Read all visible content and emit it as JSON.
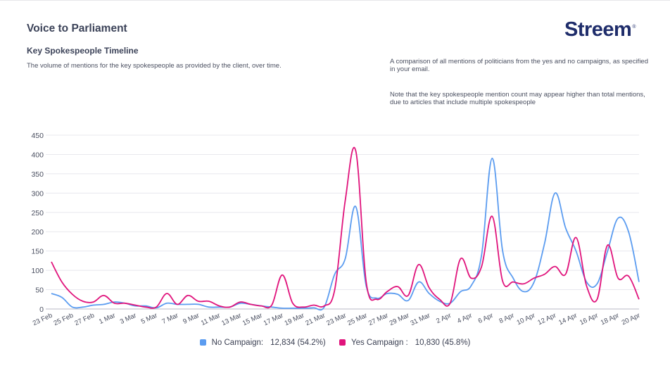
{
  "header": {
    "title": "Voice to Parliament",
    "subtitle": "Key Spokespeople Timeline",
    "description": "The volume of mentions for the key spokespeople as provided by the client, over time.",
    "note1": "A comparison of all mentions of politicians from the yes and no campaigns, as specified in your email.",
    "note2": "Note that the key spokespeople mention count may appear higher than total mentions, due to articles that include multiple spokespeople",
    "brand": "Streem",
    "brand_mark": "®"
  },
  "legend": {
    "items": [
      {
        "label": "No Campaign:",
        "value": "12,834 (54.2%)"
      },
      {
        "label": "Yes Campaign :",
        "value": "10,830 (45.8%)"
      }
    ]
  },
  "colors": {
    "no": "#5b9cf0",
    "yes": "#e0147c",
    "grid": "#e8e8ee"
  },
  "chart_data": {
    "type": "line",
    "title": "Key Spokespeople Timeline",
    "xlabel": "",
    "ylabel": "",
    "ylim": [
      0,
      450
    ],
    "yticks": [
      0,
      50,
      100,
      150,
      200,
      250,
      300,
      350,
      400,
      450
    ],
    "x": [
      "23 Feb",
      "24 Feb",
      "25 Feb",
      "26 Feb",
      "27 Feb",
      "28 Feb",
      "1 Mar",
      "2 Mar",
      "3 Mar",
      "4 Mar",
      "5 Mar",
      "6 Mar",
      "7 Mar",
      "8 Mar",
      "9 Mar",
      "10 Mar",
      "11 Mar",
      "12 Mar",
      "13 Mar",
      "14 Mar",
      "15 Mar",
      "16 Mar",
      "17 Mar",
      "18 Mar",
      "19 Mar",
      "20 Mar",
      "21 Mar",
      "22 Mar",
      "23 Mar",
      "24 Mar",
      "25 Mar",
      "26 Mar",
      "27 Mar",
      "28 Mar",
      "29 Mar",
      "30 Mar",
      "31 Mar",
      "1 Apr",
      "2 Apr",
      "3 Apr",
      "4 Apr",
      "5 Apr",
      "6 Apr",
      "7 Apr",
      "8 Apr",
      "9 Apr",
      "10 Apr",
      "11 Apr",
      "12 Apr",
      "13 Apr",
      "14 Apr",
      "15 Apr",
      "16 Apr",
      "17 Apr",
      "18 Apr",
      "19 Apr",
      "20 Apr"
    ],
    "xtick_labels": [
      "23 Feb",
      "25 Feb",
      "27 Feb",
      "1 Mar",
      "3 Mar",
      "5 Mar",
      "7 Mar",
      "9 Mar",
      "11 Mar",
      "13 Mar",
      "15 Mar",
      "17 Mar",
      "19 Mar",
      "21 Mar",
      "23 Mar",
      "25 Mar",
      "27 Mar",
      "29 Mar",
      "31 Mar",
      "2 Apr",
      "4 Apr",
      "6 Apr",
      "8 Apr",
      "10 Apr",
      "12 Apr",
      "14 Apr",
      "16 Apr",
      "18 Apr",
      "20 Apr"
    ],
    "series": [
      {
        "name": "No Campaign",
        "values": [
          40,
          30,
          5,
          5,
          10,
          12,
          18,
          15,
          8,
          8,
          3,
          15,
          12,
          12,
          12,
          5,
          5,
          5,
          15,
          12,
          8,
          5,
          2,
          2,
          2,
          3,
          5,
          90,
          130,
          265,
          60,
          28,
          40,
          38,
          22,
          70,
          40,
          20,
          15,
          45,
          60,
          140,
          390,
          150,
          80,
          45,
          70,
          170,
          300,
          210,
          150,
          70,
          65,
          150,
          235,
          200,
          70
        ]
      },
      {
        "name": "Yes Campaign",
        "values": [
          122,
          70,
          38,
          20,
          18,
          35,
          15,
          15,
          10,
          5,
          5,
          40,
          12,
          35,
          20,
          20,
          8,
          5,
          18,
          12,
          8,
          10,
          88,
          15,
          5,
          10,
          8,
          50,
          280,
          410,
          70,
          25,
          45,
          58,
          35,
          115,
          55,
          25,
          15,
          130,
          80,
          110,
          240,
          72,
          70,
          65,
          80,
          90,
          110,
          90,
          185,
          60,
          25,
          165,
          80,
          85,
          25
        ]
      }
    ]
  }
}
